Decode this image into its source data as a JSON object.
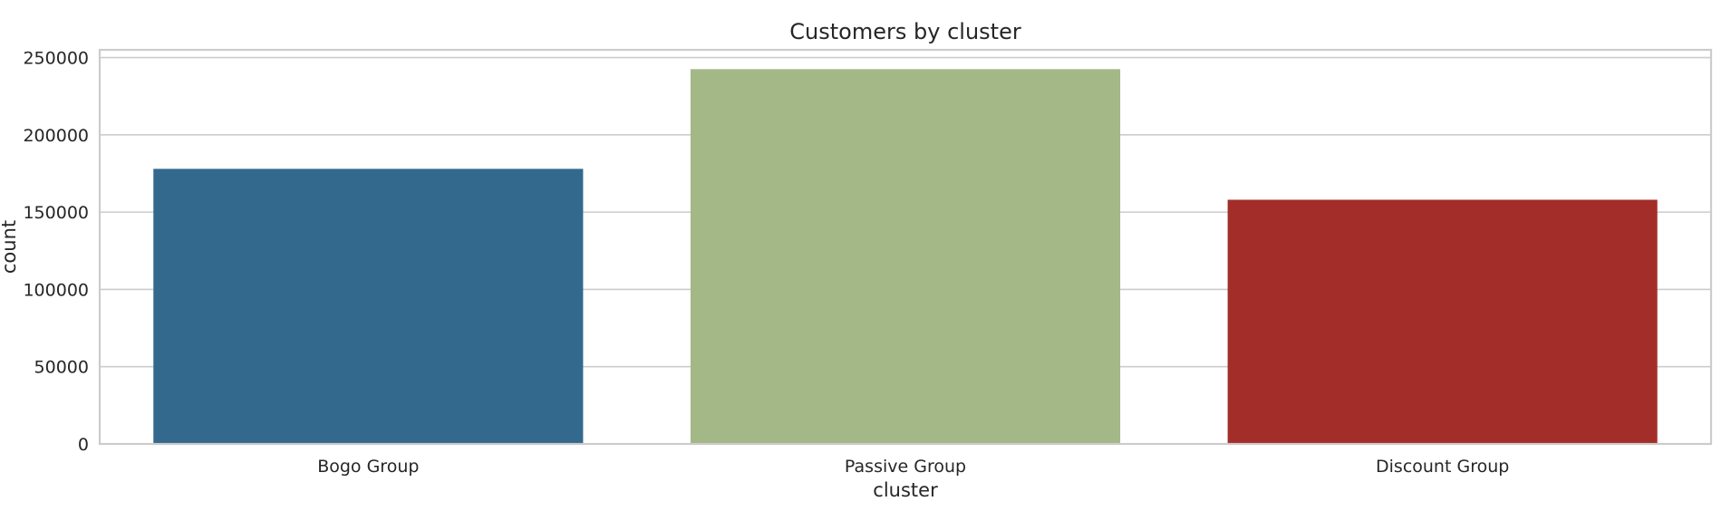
{
  "chart_data": {
    "type": "bar",
    "title": "Customers by cluster",
    "xlabel": "cluster",
    "ylabel": "count",
    "categories": [
      "Bogo Group",
      "Passive Group",
      "Discount Group"
    ],
    "values": [
      178000,
      242500,
      158000
    ],
    "colors": [
      "#33698c",
      "#a3b886",
      "#a32e29"
    ],
    "ylim": [
      0,
      255000
    ],
    "yticks": [
      0,
      50000,
      100000,
      150000,
      200000,
      250000
    ],
    "ytick_labels": [
      "0",
      "50000",
      "100000",
      "150000",
      "200000",
      "250000"
    ],
    "grid": "horizontal",
    "legend": "none"
  }
}
